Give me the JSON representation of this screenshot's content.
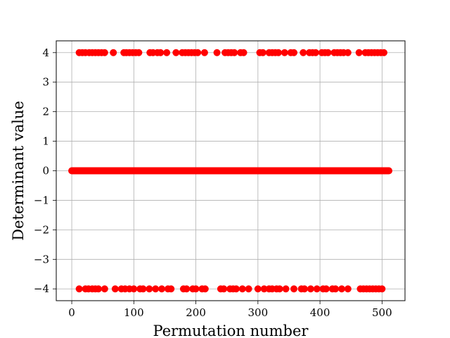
{
  "chart_data": {
    "type": "scatter",
    "title": "",
    "xlabel": "Permutation number",
    "ylabel": "Determinant value",
    "xlim": [
      -25,
      537
    ],
    "ylim": [
      -4.4,
      4.4
    ],
    "xticks": [
      0,
      100,
      200,
      300,
      400,
      500
    ],
    "yticks": [
      -4,
      -3,
      -2,
      -1,
      0,
      1,
      2,
      3,
      4
    ],
    "ytick_labels": [
      "−4",
      "−3",
      "−2",
      "−1",
      "0",
      "1",
      "2",
      "3",
      "4"
    ],
    "grid": true,
    "marker_color": "#ff0000",
    "series": [
      {
        "color": "#ff0000",
        "zero_x_range": [
          0,
          511
        ],
        "positive_x": [
          12,
          17,
          22,
          28,
          33,
          38,
          43,
          48,
          53,
          67,
          84,
          88,
          93,
          98,
          103,
          108,
          126,
          131,
          138,
          143,
          153,
          168,
          178,
          183,
          188,
          193,
          198,
          203,
          214,
          234,
          247,
          252,
          257,
          262,
          272,
          277,
          303,
          308,
          318,
          323,
          328,
          333,
          343,
          353,
          358,
          373,
          383,
          388,
          393,
          403,
          408,
          413,
          423,
          428,
          433,
          438,
          445,
          463,
          473,
          478,
          483,
          488,
          493,
          498,
          503
        ],
        "negative_x": [
          12,
          22,
          27,
          33,
          38,
          43,
          53,
          70,
          80,
          86,
          93,
          100,
          110,
          115,
          125,
          135,
          145,
          155,
          160,
          180,
          185,
          195,
          200,
          210,
          215,
          240,
          245,
          255,
          260,
          265,
          275,
          285,
          300,
          310,
          318,
          323,
          330,
          335,
          345,
          358,
          370,
          375,
          385,
          395,
          405,
          410,
          420,
          425,
          435,
          445,
          465,
          470,
          475,
          480,
          485,
          490,
          495,
          500
        ]
      }
    ]
  }
}
